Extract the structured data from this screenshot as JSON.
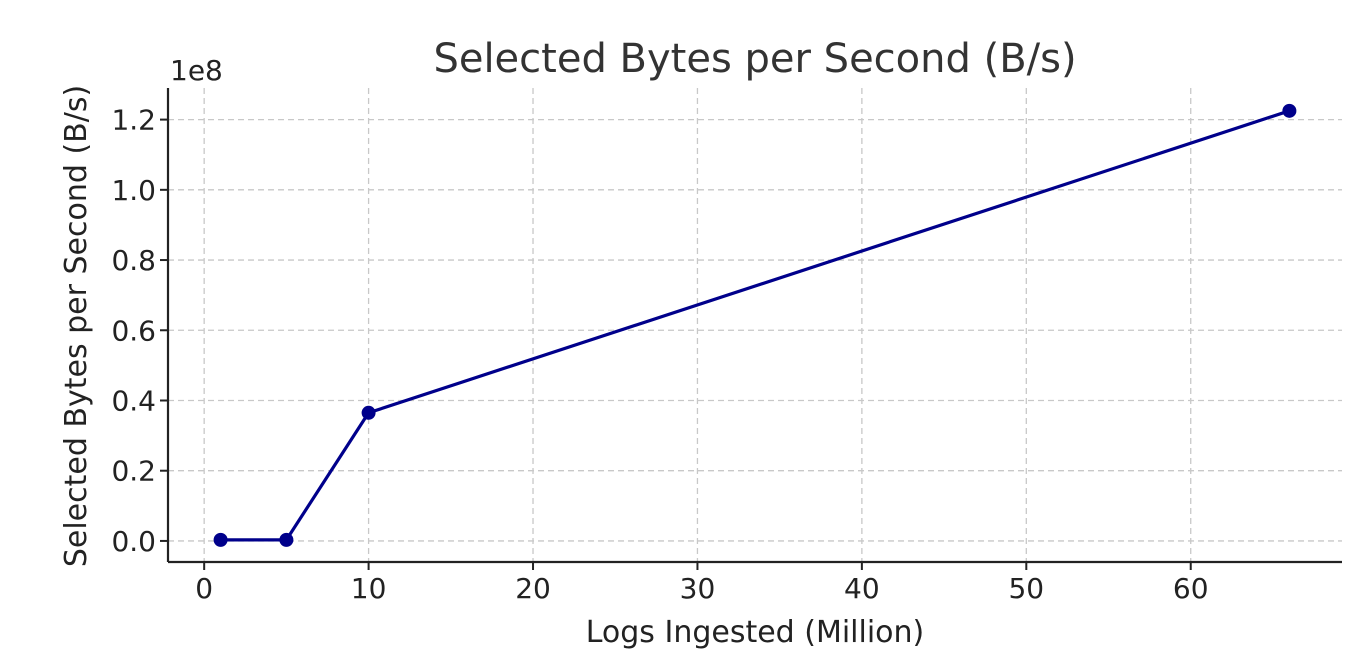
{
  "chart_data": {
    "type": "line",
    "title": "Selected Bytes per Second (B/s)",
    "xlabel": "Logs Ingested (Million)",
    "ylabel": "Selected Bytes per Second (B/s)",
    "y_offset_label": "1e8",
    "xlim": [
      -2.2,
      69.2
    ],
    "ylim": [
      -0.06,
      1.29
    ],
    "y_scale_factor": 100000000,
    "xticks": [
      0,
      10,
      20,
      30,
      40,
      50,
      60
    ],
    "xtick_labels": [
      "0",
      "10",
      "20",
      "30",
      "40",
      "50",
      "60"
    ],
    "yticks": [
      0.0,
      0.2,
      0.4,
      0.6,
      0.8,
      1.0,
      1.2
    ],
    "ytick_labels": [
      "0.0",
      "0.2",
      "0.4",
      "0.6",
      "0.8",
      "1.0",
      "1.2"
    ],
    "grid": true,
    "series": [
      {
        "color": "#00008b",
        "marker": "circle",
        "x": [
          1,
          5,
          10,
          66
        ],
        "y": [
          0.003,
          0.003,
          0.365,
          1.225
        ]
      }
    ]
  }
}
